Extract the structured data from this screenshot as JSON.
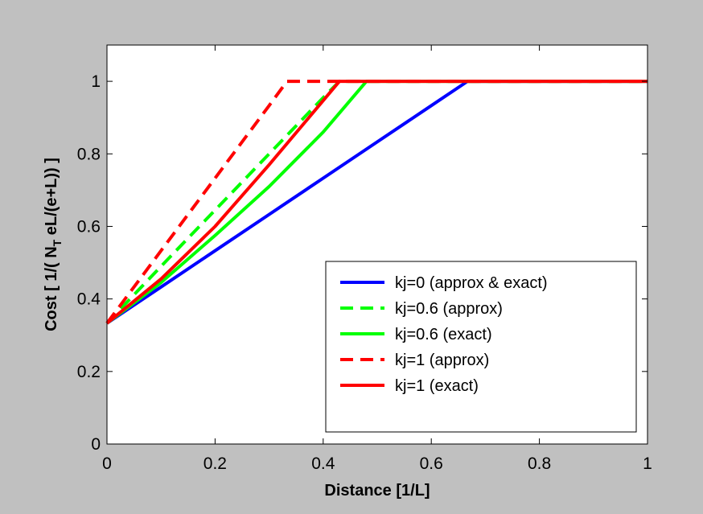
{
  "chart_data": {
    "type": "line",
    "xlabel": "Distance  [1/L]",
    "ylabel_parts": {
      "before": "Cost [ 1/( N",
      "sub": "T",
      "after": " eL/(e+L)) ]"
    },
    "xlim": [
      0,
      1
    ],
    "ylim": [
      0,
      1.1
    ],
    "xticks": [
      0,
      0.2,
      0.4,
      0.6,
      0.8,
      1
    ],
    "xtick_labels": [
      "0",
      "0.2",
      "0.4",
      "0.6",
      "0.8",
      "1"
    ],
    "yticks": [
      0,
      0.2,
      0.4,
      0.6,
      0.8,
      1
    ],
    "ytick_labels": [
      "0",
      "0.2",
      "0.4",
      "0.6",
      "0.8",
      "1"
    ],
    "grid": false,
    "legend_position": "bottom-right",
    "series": [
      {
        "name": "kj=0 (approx & exact)",
        "color": "#0000ff",
        "dash": "solid",
        "x": [
          0,
          0.1,
          0.2,
          0.3,
          0.4,
          0.5,
          0.6,
          0.667,
          1
        ],
        "y": [
          0.333,
          0.433,
          0.533,
          0.633,
          0.733,
          0.833,
          0.933,
          1.0,
          1.0
        ]
      },
      {
        "name": "kj=0.6 (approx)",
        "color": "#00ff00",
        "dash": "dashed",
        "x": [
          0,
          0.1,
          0.2,
          0.3,
          0.4,
          0.43,
          1
        ],
        "y": [
          0.333,
          0.49,
          0.645,
          0.8,
          0.955,
          1.0,
          1.0
        ]
      },
      {
        "name": "kj=0.6 (exact)",
        "color": "#00ff00",
        "dash": "solid",
        "x": [
          0,
          0.1,
          0.2,
          0.3,
          0.4,
          0.48,
          1
        ],
        "y": [
          0.333,
          0.445,
          0.575,
          0.71,
          0.86,
          1.0,
          1.0
        ]
      },
      {
        "name": "kj=1 (approx)",
        "color": "#ff0000",
        "dash": "dashed",
        "x": [
          0,
          0.1,
          0.2,
          0.3,
          0.333,
          1
        ],
        "y": [
          0.333,
          0.533,
          0.733,
          0.933,
          1.0,
          1.0
        ]
      },
      {
        "name": "kj=1 (exact)",
        "color": "#ff0000",
        "dash": "solid",
        "x": [
          0,
          0.1,
          0.2,
          0.3,
          0.43,
          1
        ],
        "y": [
          0.333,
          0.455,
          0.6,
          0.77,
          1.0,
          1.0
        ]
      }
    ]
  }
}
